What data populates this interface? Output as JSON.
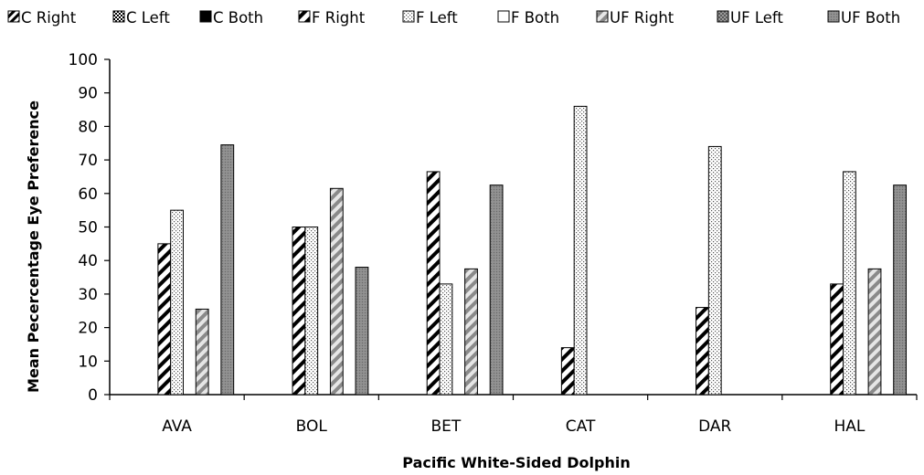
{
  "chart_data": {
    "type": "bar",
    "title": "",
    "xlabel": "Pacific  White-Sided Dolphin",
    "ylabel": "Mean Pecercentage Eye Preference",
    "ylim": [
      0,
      100
    ],
    "yticks": [
      0,
      10,
      20,
      30,
      40,
      50,
      60,
      70,
      80,
      90,
      100
    ],
    "grid": false,
    "legend_position": "top",
    "categories": [
      "AVA",
      "BOL",
      "BET",
      "CAT",
      "DAR",
      "HAL"
    ],
    "series": [
      {
        "name": "C Right",
        "pattern": "diag-coarse",
        "values": [
          null,
          null,
          null,
          null,
          null,
          null
        ]
      },
      {
        "name": "C Left",
        "pattern": "checker",
        "values": [
          null,
          null,
          null,
          null,
          null,
          null
        ]
      },
      {
        "name": "C Both",
        "pattern": "solid-black",
        "values": [
          null,
          null,
          null,
          null,
          null,
          null
        ]
      },
      {
        "name": "F Right",
        "pattern": "diag-black",
        "values": [
          45,
          50,
          66.5,
          14,
          26,
          33
        ]
      },
      {
        "name": "F Left",
        "pattern": "dots",
        "values": [
          55,
          50,
          33,
          86,
          74,
          66.5
        ]
      },
      {
        "name": "F Both",
        "pattern": "white",
        "values": [
          null,
          null,
          null,
          null,
          null,
          null
        ]
      },
      {
        "name": "UF Right",
        "pattern": "diag-gray",
        "values": [
          25.5,
          61.5,
          37.5,
          null,
          null,
          37.5
        ]
      },
      {
        "name": "UF Left",
        "pattern": "gray-dots",
        "values": [
          null,
          null,
          null,
          null,
          null,
          null
        ]
      },
      {
        "name": "UF Both",
        "pattern": "gray-dotted-solid",
        "values": [
          74.5,
          38,
          62.5,
          null,
          null,
          62.5
        ]
      }
    ]
  }
}
